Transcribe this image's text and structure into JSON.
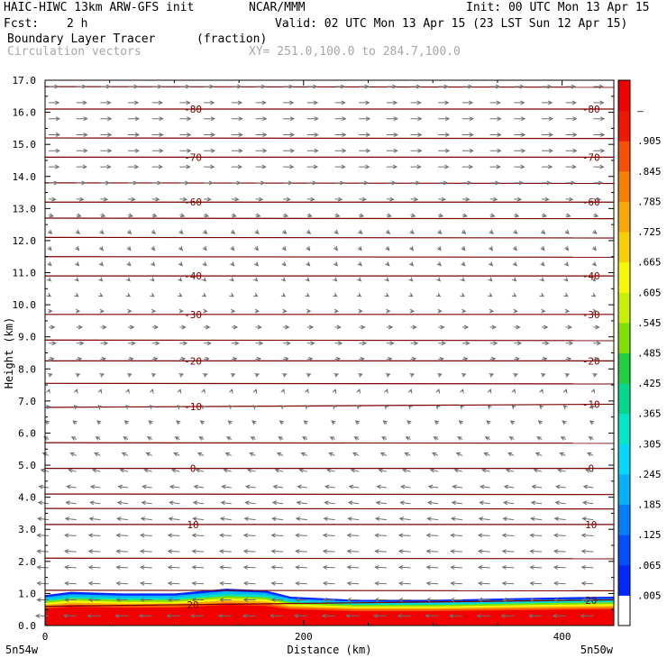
{
  "header": {
    "model": "HAIC-HIWC 13km ARW-GFS init",
    "org": "NCAR/MMM",
    "init": "Init: 00 UTC Mon 13 Apr 15",
    "fcst_label": "Fcst:",
    "fcst_value": "2 h",
    "valid": "Valid: 02 UTC Mon 13 Apr 15 (23 LST Sun 12 Apr 15)",
    "field": "Boundary Layer Tracer",
    "field_units": "(fraction)",
    "vector_label": "Circulation vectors",
    "xsec": "XY= 251.0,100.0 to 284.7,100.0"
  },
  "chart_data": {
    "type": "heatmap",
    "title": "Boundary Layer Tracer",
    "xlabel": "Distance (km)",
    "ylabel": "Height (km)",
    "xlim": [
      0,
      440
    ],
    "ylim": [
      0,
      17
    ],
    "x_ticks": [
      0,
      200,
      400
    ],
    "y_ticks": [
      "0.0",
      "1.0",
      "2.0",
      "3.0",
      "4.0",
      "5.0",
      "6.0",
      "7.0",
      "8.0",
      "9.0",
      "10.0",
      "11.0",
      "12.0",
      "13.0",
      "14.0",
      "15.0",
      "16.0",
      "17.0"
    ],
    "x_left_label": "5n54w",
    "x_right_label": "5n50w",
    "colorbar": {
      "labels": [
        ".005",
        ".065",
        ".125",
        ".185",
        ".245",
        ".305",
        ".365",
        ".425",
        ".485",
        ".545",
        ".605",
        ".665",
        ".725",
        ".785",
        ".845",
        ".905",
        "–"
      ],
      "colors": [
        "#ffffff",
        "#0028ff",
        "#0050ff",
        "#0080ff",
        "#00b0ff",
        "#00d8ff",
        "#00e8c8",
        "#00d890",
        "#20d040",
        "#80e000",
        "#c8f000",
        "#f8f800",
        "#f8d000",
        "#f8a800",
        "#f88000",
        "#f85000",
        "#f01800",
        "#f00000"
      ]
    },
    "tracer_profile": {
      "x_km": [
        0,
        20,
        60,
        100,
        140,
        170,
        190,
        240,
        300,
        360,
        400,
        440
      ],
      "top_km": [
        0.95,
        1.05,
        1.0,
        1.0,
        1.15,
        1.1,
        0.9,
        0.8,
        0.8,
        0.85,
        0.88,
        0.9
      ]
    },
    "temperature_contours": {
      "labeled": [
        {
          "value": "20",
          "km": [
            0.6,
            0.8
          ]
        },
        {
          "value": "10",
          "km": [
            3.15,
            3.15
          ]
        },
        {
          "value": "0",
          "km": [
            4.9,
            4.9
          ]
        },
        {
          "value": "-10",
          "km": [
            6.8,
            6.9
          ]
        },
        {
          "value": "-20",
          "km": [
            8.25,
            8.25
          ]
        },
        {
          "value": "-30",
          "km": [
            9.7,
            9.7
          ]
        },
        {
          "value": "-40",
          "km": [
            10.9,
            10.9
          ]
        },
        {
          "value": "-60",
          "km": [
            13.2,
            13.2
          ]
        },
        {
          "value": "-70",
          "km": [
            14.6,
            14.6
          ]
        },
        {
          "value": "-80",
          "km": [
            16.1,
            16.1
          ]
        }
      ],
      "unlabeled_km": [
        1.1,
        2.1,
        3.65,
        4.1,
        5.7,
        7.55,
        8.9,
        11.5,
        12.1,
        12.7,
        13.8,
        15.2,
        16.8
      ]
    },
    "vectors": {
      "x_km": [
        0,
        20,
        40,
        60,
        80,
        100,
        120,
        140,
        160,
        180,
        200,
        220,
        240,
        260,
        280,
        300,
        320,
        340,
        360,
        380,
        400,
        420
      ],
      "levels": [
        {
          "km": 0.3,
          "u": -1.0,
          "v": 0.0
        },
        {
          "km": 0.8,
          "u": -0.9,
          "v": 0.0
        },
        {
          "km": 1.3,
          "u": -0.9,
          "v": 0.05
        },
        {
          "km": 1.8,
          "u": -0.9,
          "v": 0.05
        },
        {
          "km": 2.3,
          "u": -0.9,
          "v": 0.05
        },
        {
          "km": 2.8,
          "u": -0.9,
          "v": 0.05
        },
        {
          "km": 3.3,
          "u": -0.85,
          "v": 0.1
        },
        {
          "km": 3.8,
          "u": -0.8,
          "v": 0.1
        },
        {
          "km": 4.3,
          "u": -0.75,
          "v": 0.1
        },
        {
          "km": 4.8,
          "u": -0.6,
          "v": 0.15
        },
        {
          "km": 5.3,
          "u": -0.45,
          "v": 0.2
        },
        {
          "km": 5.8,
          "u": -0.35,
          "v": 0.2
        },
        {
          "km": 6.3,
          "u": -0.25,
          "v": 0.2
        },
        {
          "km": 6.8,
          "u": -0.15,
          "v": 0.15
        },
        {
          "km": 7.3,
          "u": 0.05,
          "v": 0.15
        },
        {
          "km": 7.8,
          "u": 0.25,
          "v": 0.1
        },
        {
          "km": 8.3,
          "u": 0.4,
          "v": 0.05
        },
        {
          "km": 8.8,
          "u": 0.55,
          "v": 0.0
        },
        {
          "km": 9.3,
          "u": 0.45,
          "v": 0.0
        },
        {
          "km": 9.8,
          "u": 0.25,
          "v": 0.0
        },
        {
          "km": 10.3,
          "u": 0.15,
          "v": -0.1
        },
        {
          "km": 10.8,
          "u": 0.15,
          "v": -0.15
        },
        {
          "km": 11.3,
          "u": 0.2,
          "v": -0.2
        },
        {
          "km": 11.8,
          "u": 0.2,
          "v": -0.25
        },
        {
          "km": 12.3,
          "u": 0.25,
          "v": -0.2
        },
        {
          "km": 12.8,
          "u": 0.35,
          "v": -0.1
        },
        {
          "km": 13.3,
          "u": 0.55,
          "v": -0.05
        },
        {
          "km": 13.8,
          "u": 0.7,
          "v": 0.0
        },
        {
          "km": 14.3,
          "u": 0.8,
          "v": 0.0
        },
        {
          "km": 14.8,
          "u": 0.85,
          "v": 0.0
        },
        {
          "km": 15.3,
          "u": 0.85,
          "v": 0.0
        },
        {
          "km": 15.8,
          "u": 0.85,
          "v": 0.0
        },
        {
          "km": 16.3,
          "u": 0.8,
          "v": 0.0
        },
        {
          "km": 16.8,
          "u": 0.75,
          "v": 0.0
        }
      ]
    }
  },
  "colors": {
    "contour": "#7a0000",
    "vector": "#707070",
    "frame": "#000000",
    "tracer_core": "#f00000"
  }
}
